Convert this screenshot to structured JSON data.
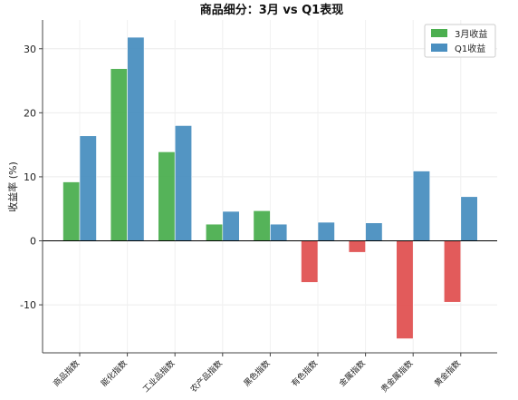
{
  "chart_data": {
    "type": "bar",
    "title": "商品细分：3月 vs Q1表现",
    "ylabel": "收益率 (%)",
    "xlabel": "",
    "categories": [
      "商品指数",
      "能化指数",
      "工业品指数",
      "农产品指数",
      "黑色指数",
      "有色指数",
      "金属指数",
      "贵金属指数",
      "黄金指数"
    ],
    "series": [
      {
        "name": "3月收益",
        "values": [
          9.2,
          26.9,
          13.9,
          2.6,
          4.7,
          -6.5,
          -1.8,
          -15.3,
          -9.6
        ]
      },
      {
        "name": "Q1收益",
        "values": [
          16.4,
          31.8,
          18.0,
          4.6,
          2.6,
          2.9,
          2.8,
          10.9,
          6.9
        ]
      }
    ],
    "yticks": [
      -10,
      0,
      10,
      20,
      30
    ],
    "ylim": [
      -17.5,
      34.5
    ],
    "grid": true,
    "legend": "top-right",
    "colors": {
      "march_positive": "#4caf50",
      "march_negative": "#e05252",
      "q1": "#4a8fc0",
      "zero_line": "#000000"
    }
  }
}
